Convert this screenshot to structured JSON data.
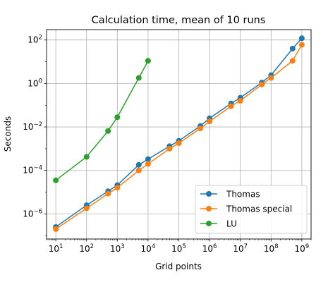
{
  "chart_data": {
    "type": "line",
    "title": "Calculation time, mean of 10 runs",
    "xlabel": "Grid points",
    "ylabel": "Seconds",
    "xscale": "log",
    "yscale": "log",
    "xlim": [
      5,
      2000000000
    ],
    "ylim": [
      7e-08,
      300
    ],
    "grid": true,
    "legend_position": "lower-right",
    "x_ticks": [
      {
        "value": 10,
        "base": "10",
        "exp": "1"
      },
      {
        "value": 100,
        "base": "10",
        "exp": "2"
      },
      {
        "value": 1000,
        "base": "10",
        "exp": "3"
      },
      {
        "value": 10000,
        "base": "10",
        "exp": "4"
      },
      {
        "value": 100000,
        "base": "10",
        "exp": "5"
      },
      {
        "value": 1000000,
        "base": "10",
        "exp": "6"
      },
      {
        "value": 10000000,
        "base": "10",
        "exp": "7"
      },
      {
        "value": 100000000,
        "base": "10",
        "exp": "8"
      },
      {
        "value": 1000000000,
        "base": "10",
        "exp": "9"
      }
    ],
    "y_ticks": [
      {
        "value": 1e-06,
        "base": "10",
        "exp": "−6"
      },
      {
        "value": 0.0001,
        "base": "10",
        "exp": "−4"
      },
      {
        "value": 0.01,
        "base": "10",
        "exp": "−2"
      },
      {
        "value": 1,
        "base": "10",
        "exp": "0"
      },
      {
        "value": 100,
        "base": "10",
        "exp": "2"
      }
    ],
    "series": [
      {
        "name": "Thomas",
        "color": "#1f77b4",
        "x": [
          10,
          100,
          500,
          1000,
          5000,
          10000,
          50000,
          100000,
          500000,
          1000000,
          5000000,
          10000000,
          50000000,
          100000000,
          500000000,
          1000000000
        ],
        "y": [
          2.5e-07,
          2.5e-06,
          1.1e-05,
          2.1e-05,
          0.00018,
          0.00033,
          0.0013,
          0.0023,
          0.011,
          0.025,
          0.12,
          0.22,
          1.1,
          2.4,
          40,
          120
        ]
      },
      {
        "name": "Thomas special",
        "color": "#ff7f0e",
        "x": [
          10,
          100,
          500,
          1000,
          5000,
          10000,
          50000,
          100000,
          500000,
          1000000,
          5000000,
          10000000,
          50000000,
          100000000,
          500000000,
          1000000000
        ],
        "y": [
          2e-07,
          1.8e-06,
          8.5e-06,
          1.6e-05,
          0.0001,
          0.0002,
          0.001,
          0.0018,
          0.0085,
          0.018,
          0.09,
          0.16,
          0.9,
          1.8,
          11,
          60
        ]
      },
      {
        "name": "LU",
        "color": "#2ca02c",
        "x": [
          10,
          100,
          500,
          1000,
          5000,
          10000
        ],
        "y": [
          3.5e-05,
          0.00042,
          0.0065,
          0.028,
          1.8,
          11
        ]
      }
    ]
  }
}
